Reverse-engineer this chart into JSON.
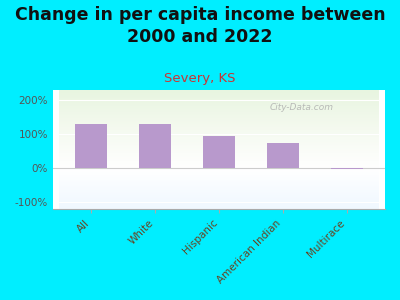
{
  "title": "Change in per capita income between\n2000 and 2022",
  "subtitle": "Severy, KS",
  "categories": [
    "All",
    "White",
    "Hispanic",
    "American Indian",
    "Multirace"
  ],
  "values": [
    130,
    130,
    93,
    75,
    -2
  ],
  "bar_color": "#b899cc",
  "title_fontsize": 12.5,
  "subtitle_fontsize": 9.5,
  "subtitle_color": "#cc3333",
  "title_color": "#111111",
  "background_outer": "#00eeff",
  "ylim": [
    -120,
    230
  ],
  "yticks": [
    -100,
    0,
    100,
    200
  ],
  "yticklabels": [
    "-100%",
    "0%",
    "100%",
    "200%"
  ],
  "watermark": "City-Data.com",
  "tick_label_color": "#555555",
  "xlabel_color": "#664422"
}
